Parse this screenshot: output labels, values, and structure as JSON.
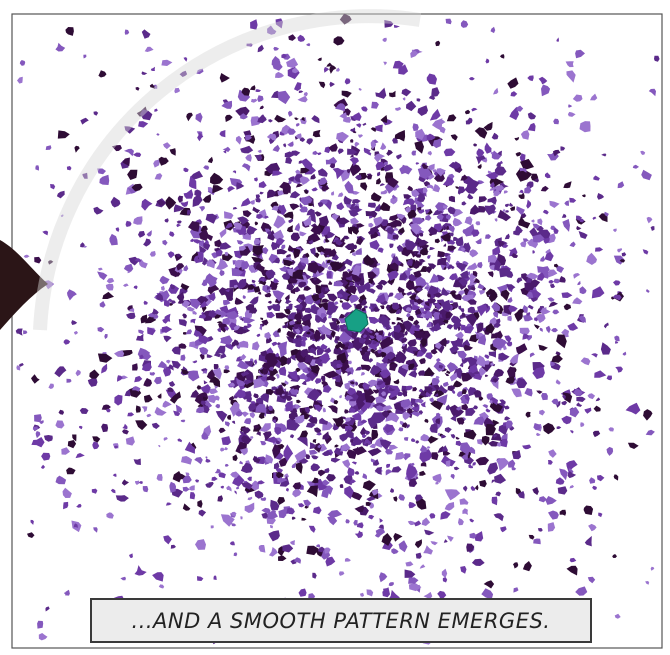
{
  "caption": "...AND A SMOOTH PATTERN EMERGES."
}
